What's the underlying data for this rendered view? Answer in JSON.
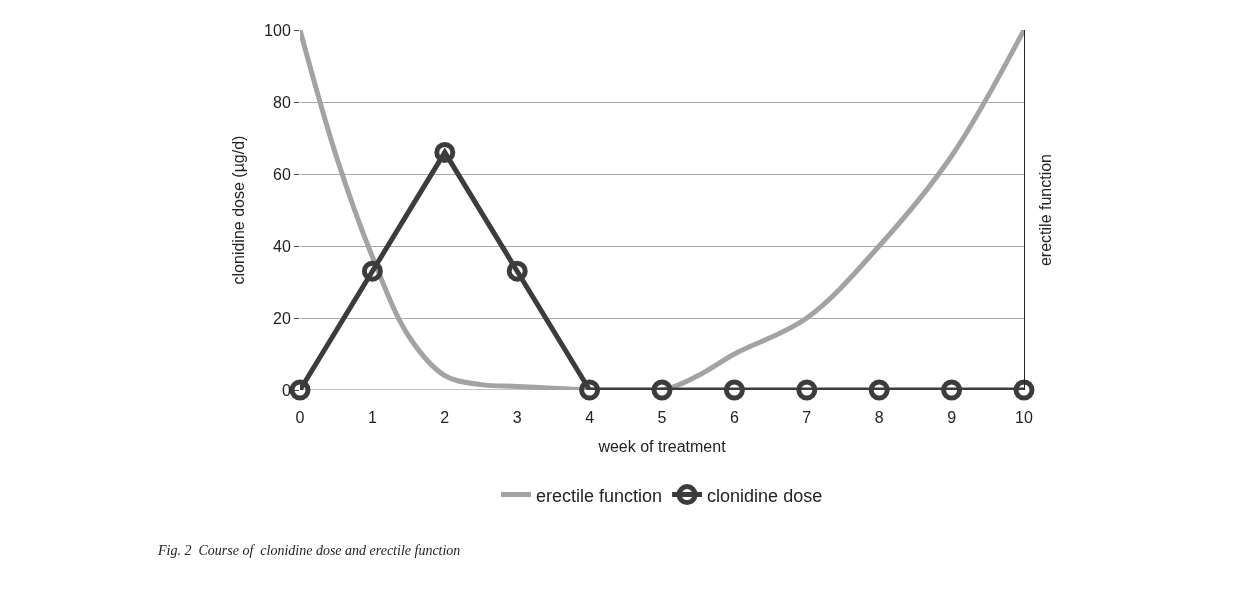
{
  "chart_data": {
    "type": "line",
    "xlabel": "week of treatment",
    "ylabel": "clonidine dose (µg/d)",
    "y2label": "erectile function",
    "x": [
      0,
      1,
      2,
      3,
      4,
      5,
      6,
      7,
      8,
      9,
      10
    ],
    "xlim": [
      0,
      10
    ],
    "xticks": [
      0,
      1,
      2,
      3,
      4,
      5,
      6,
      7,
      8,
      9,
      10
    ],
    "ylim": [
      0,
      100
    ],
    "yticks": [
      0,
      20,
      40,
      60,
      80,
      100
    ],
    "grid": "y",
    "legend": "bottom",
    "series": [
      {
        "name": "erectile function",
        "color": "#a3a3a3",
        "marker": "none",
        "x": [
          0,
          0.5,
          1,
          1.5,
          2,
          2.5,
          3,
          3.5,
          4,
          5,
          5.5,
          6,
          7,
          8,
          9,
          10
        ],
        "values": [
          100,
          65,
          37,
          15,
          4,
          1.5,
          1,
          0.5,
          0,
          0,
          4,
          10,
          20,
          40,
          65,
          100
        ]
      },
      {
        "name": "clonidine dose",
        "color": "#3c3c3c",
        "marker": "circle",
        "values": [
          0,
          33,
          66,
          33,
          0,
          0,
          0,
          0,
          0,
          0,
          0
        ]
      }
    ],
    "annotations": [
      "Fig. 2  Course of  clonidine dose and erectile function"
    ]
  }
}
